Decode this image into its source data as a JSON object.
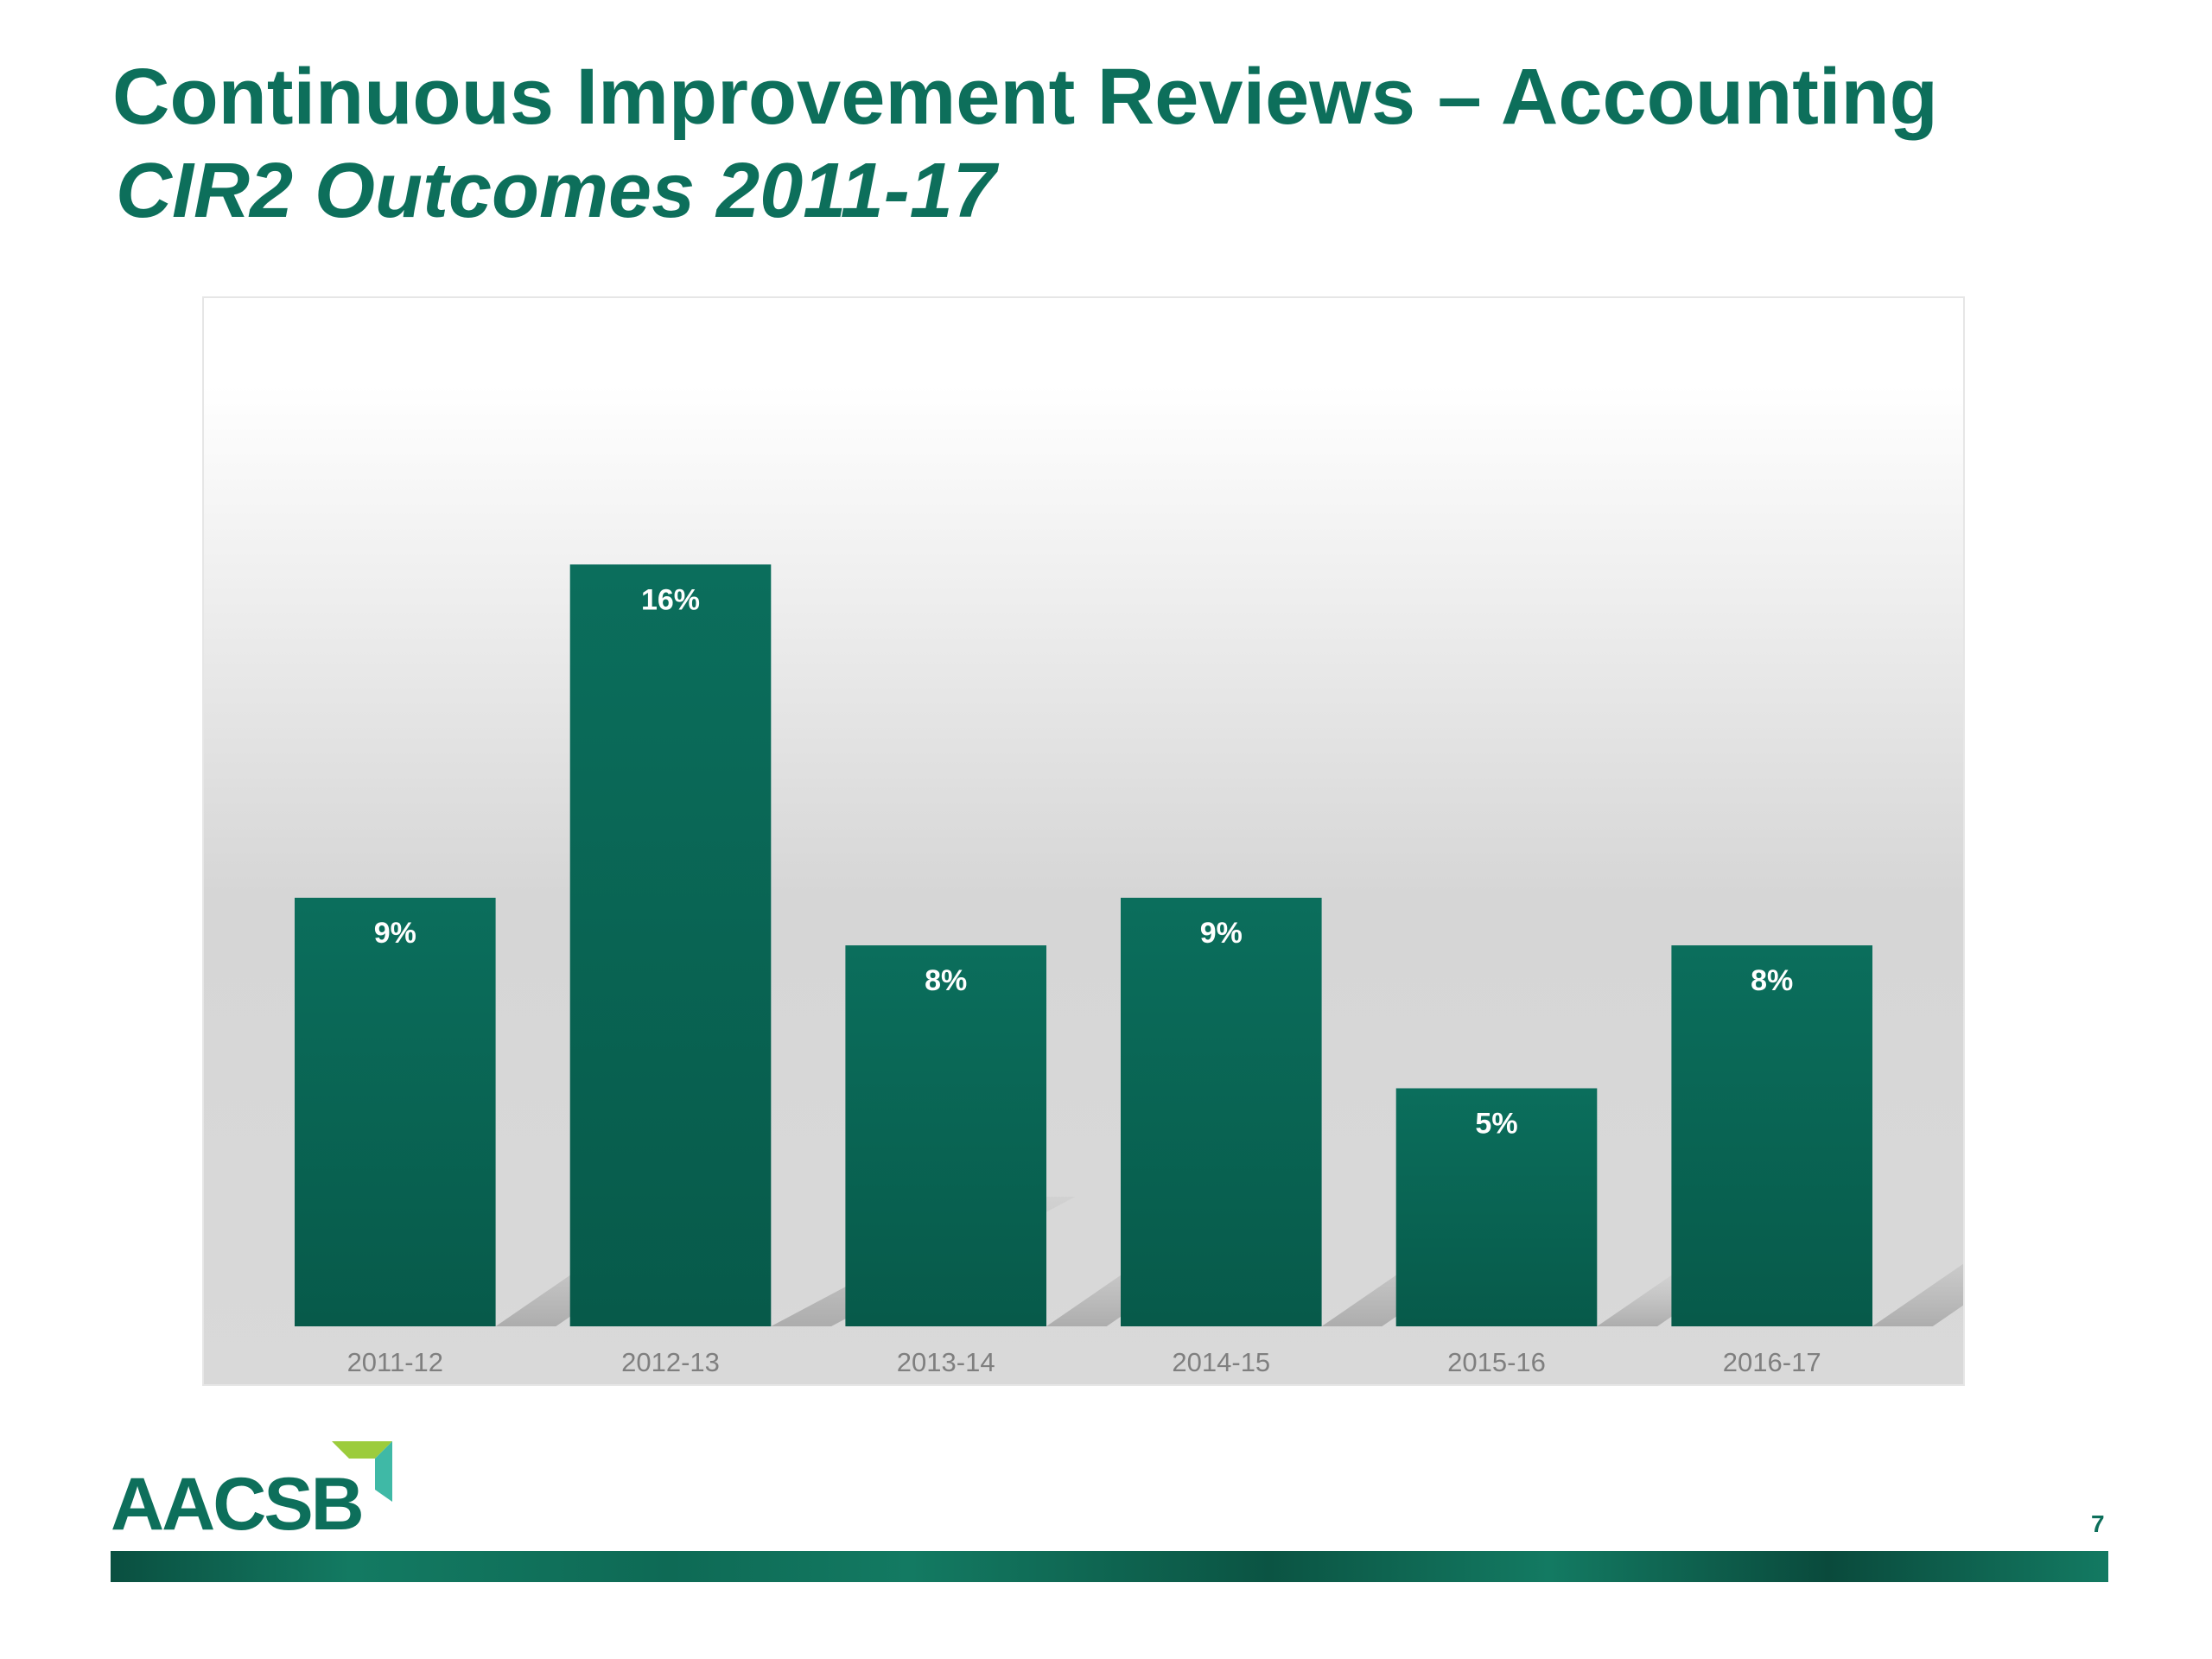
{
  "header": {
    "title": "Continuous Improvement Reviews – Accounting",
    "subtitle": "CIR2 Outcomes 2011-17"
  },
  "footer": {
    "logo_text": "AACSB",
    "page_number": "7"
  },
  "colors": {
    "brand_green": "#0d6f5b",
    "bar_top": "#0b6e5c",
    "bar_bottom": "#075a4a",
    "logo_accent_light": "#9ccc3c",
    "logo_accent_teal": "#3fb9a6"
  },
  "chart_data": {
    "type": "bar",
    "title": "",
    "xlabel": "",
    "ylabel": "",
    "categories": [
      "2011-12",
      "2012-13",
      "2013-14",
      "2014-15",
      "2015-16",
      "2016-17"
    ],
    "values": [
      9,
      16,
      8,
      9,
      5,
      8
    ],
    "data_labels": [
      "9%",
      "16%",
      "8%",
      "9%",
      "5%",
      "8%"
    ],
    "unit": "%",
    "ylim": [
      0,
      18.6
    ],
    "grid": false,
    "legend": "none"
  }
}
